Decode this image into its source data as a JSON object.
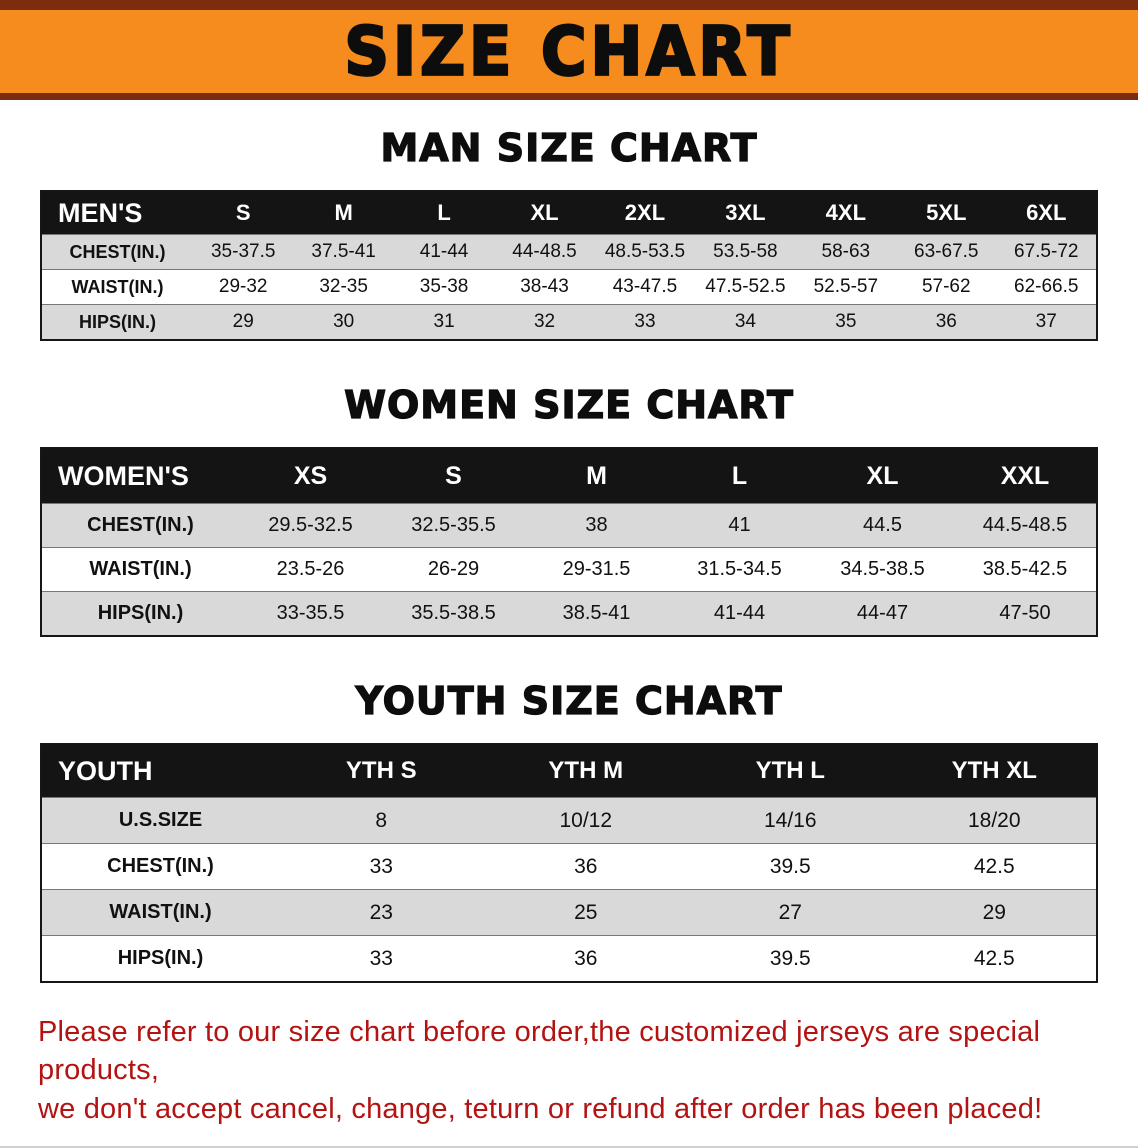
{
  "banner": {
    "title": "SIZE CHART",
    "bg_color": "#F68B1E",
    "trim_color": "#7C2D0E"
  },
  "colors": {
    "row_shade": "#D9D9D9",
    "table_header_bg": "#141414",
    "disclaimer_text": "#B31312"
  },
  "sections": [
    {
      "id": "men",
      "heading": "MAN SIZE CHART",
      "table": {
        "header": [
          "MEN'S",
          "S",
          "M",
          "L",
          "XL",
          "2XL",
          "3XL",
          "4XL",
          "5XL",
          "6XL"
        ],
        "rows": [
          [
            "CHEST(IN.)",
            "35-37.5",
            "37.5-41",
            "41-44",
            "44-48.5",
            "48.5-53.5",
            "53.5-58",
            "58-63",
            "63-67.5",
            "67.5-72"
          ],
          [
            "WAIST(IN.)",
            "29-32",
            "32-35",
            "35-38",
            "38-43",
            "43-47.5",
            "47.5-52.5",
            "52.5-57",
            "57-62",
            "62-66.5"
          ],
          [
            "HIPS(IN.)",
            "29",
            "30",
            "31",
            "32",
            "33",
            "34",
            "35",
            "36",
            "37"
          ]
        ]
      }
    },
    {
      "id": "women",
      "heading": "WOMEN SIZE CHART",
      "table": {
        "header": [
          "WOMEN'S",
          "XS",
          "S",
          "M",
          "L",
          "XL",
          "XXL"
        ],
        "rows": [
          [
            "CHEST(IN.)",
            "29.5-32.5",
            "32.5-35.5",
            "38",
            "41",
            "44.5",
            "44.5-48.5"
          ],
          [
            "WAIST(IN.)",
            "23.5-26",
            "26-29",
            "29-31.5",
            "31.5-34.5",
            "34.5-38.5",
            "38.5-42.5"
          ],
          [
            "HIPS(IN.)",
            "33-35.5",
            "35.5-38.5",
            "38.5-41",
            "41-44",
            "44-47",
            "47-50"
          ]
        ]
      }
    },
    {
      "id": "youth",
      "heading": "YOUTH SIZE CHART",
      "table": {
        "header": [
          "YOUTH",
          "YTH S",
          "YTH M",
          "YTH L",
          "YTH XL"
        ],
        "rows": [
          [
            "U.S.SIZE",
            "8",
            "10/12",
            "14/16",
            "18/20"
          ],
          [
            "CHEST(IN.)",
            "33",
            "36",
            "39.5",
            "42.5"
          ],
          [
            "WAIST(IN.)",
            "23",
            "25",
            "27",
            "29"
          ],
          [
            "HIPS(IN.)",
            "33",
            "36",
            "39.5",
            "42.5"
          ]
        ]
      }
    }
  ],
  "disclaimer": {
    "line1": "Please refer to our size chart before order,the customized jerseys are special products,",
    "line2": "we don't accept cancel, change, teturn or refund after order has been placed!"
  }
}
